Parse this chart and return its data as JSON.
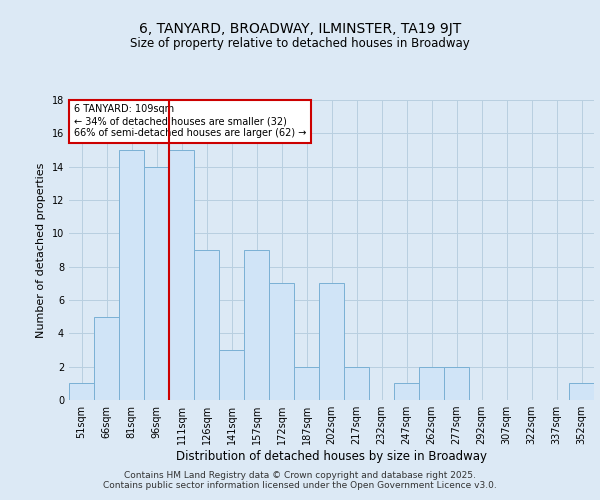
{
  "title": "6, TANYARD, BROADWAY, ILMINSTER, TA19 9JT",
  "subtitle": "Size of property relative to detached houses in Broadway",
  "xlabel": "Distribution of detached houses by size in Broadway",
  "ylabel": "Number of detached properties",
  "categories": [
    "51sqm",
    "66sqm",
    "81sqm",
    "96sqm",
    "111sqm",
    "126sqm",
    "141sqm",
    "157sqm",
    "172sqm",
    "187sqm",
    "202sqm",
    "217sqm",
    "232sqm",
    "247sqm",
    "262sqm",
    "277sqm",
    "292sqm",
    "307sqm",
    "322sqm",
    "337sqm",
    "352sqm"
  ],
  "values": [
    1,
    5,
    15,
    14,
    15,
    9,
    3,
    9,
    7,
    2,
    7,
    2,
    0,
    1,
    2,
    2,
    0,
    0,
    0,
    0,
    1
  ],
  "bar_color": "#d0e4f7",
  "bar_edge_color": "#7ab0d4",
  "redline_x": 4,
  "annotation_text": "6 TANYARD: 109sqm\n← 34% of detached houses are smaller (32)\n66% of semi-detached houses are larger (62) →",
  "annotation_box_color": "#ffffff",
  "annotation_box_edge_color": "#cc0000",
  "ylim": [
    0,
    18
  ],
  "yticks": [
    0,
    2,
    4,
    6,
    8,
    10,
    12,
    14,
    16,
    18
  ],
  "background_color": "#dce9f5",
  "plot_bg_color": "#dce9f5",
  "grid_color": "#b8cfe0",
  "title_fontsize": 10,
  "subtitle_fontsize": 8.5,
  "xlabel_fontsize": 8.5,
  "ylabel_fontsize": 8,
  "tick_fontsize": 7,
  "footer_fontsize": 6.5,
  "footer": "Contains HM Land Registry data © Crown copyright and database right 2025.\nContains public sector information licensed under the Open Government Licence v3.0."
}
